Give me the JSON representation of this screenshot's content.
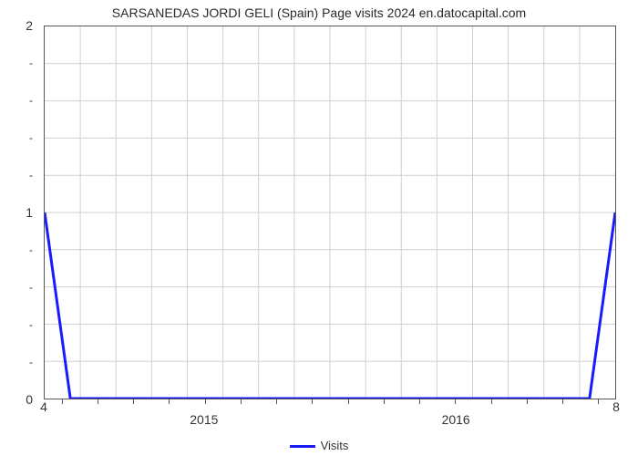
{
  "chart": {
    "type": "line",
    "title": "SARSANEDAS JORDI GELI (Spain) Page visits 2024 en.datocapital.com",
    "title_fontsize": 14,
    "title_color": "#2a2a2a",
    "background_color": "#ffffff",
    "plot_border_color": "#555555",
    "grid_color": "#cfcfcf",
    "grid_line_width": 1,
    "y_axis": {
      "lim": [
        0,
        2
      ],
      "major_ticks": [
        0,
        1,
        2
      ],
      "minor_tick_count_between": 4,
      "label_fontsize": 14,
      "minor_mark": "-"
    },
    "x_axis": {
      "range_label_left": "4",
      "range_label_right": "8",
      "major_labels": [
        "2015",
        "2016"
      ],
      "major_label_positions_pct": [
        28,
        72
      ],
      "vgrid_positions_pct": [
        6.25,
        12.5,
        18.75,
        25,
        31.25,
        37.5,
        43.75,
        50,
        56.25,
        62.5,
        68.75,
        75,
        81.25,
        87.5,
        93.75
      ],
      "minor_tick_positions_pct": [
        3.125,
        9.375,
        15.625,
        21.875,
        28.125,
        34.375,
        40.625,
        46.875,
        53.125,
        59.375,
        65.625,
        71.875,
        78.125,
        84.375,
        90.625,
        96.875
      ],
      "label_fontsize": 14
    },
    "series": {
      "name": "Visits",
      "color": "#1a1aff",
      "line_width": 3,
      "points_pct": [
        [
          0,
          50
        ],
        [
          4.5,
          100
        ],
        [
          95.5,
          100
        ],
        [
          100,
          50
        ]
      ]
    },
    "legend": {
      "label": "Visits",
      "swatch_color": "#1a1aff",
      "fontsize": 13
    }
  }
}
